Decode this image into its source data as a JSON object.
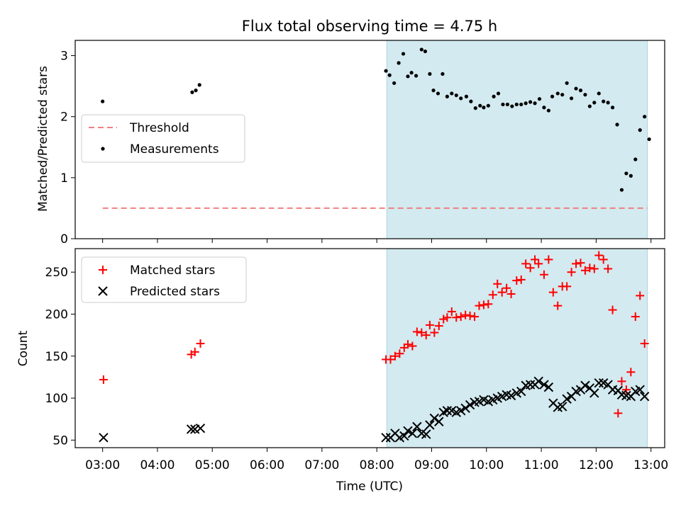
{
  "chart_data": [
    {
      "type": "scatter",
      "title": "Flux total observing time = 4.75 h",
      "xlabel": "",
      "ylabel": "Matched/Predicted stars",
      "xlim": [
        "02:30",
        "13:15"
      ],
      "ylim": [
        0,
        3.25
      ],
      "yticks": [
        0,
        1,
        2,
        3
      ],
      "grid": false,
      "legend_position": "center-left",
      "highlight_span": {
        "from": "08:11",
        "to": "12:56",
        "color": "#d3eaf0"
      },
      "series": [
        {
          "name": "Threshold",
          "kind": "dashed-line",
          "color": "#f08080",
          "x": [
            "03:00",
            "12:56"
          ],
          "y": [
            0.5,
            0.5
          ]
        },
        {
          "name": "Measurements",
          "kind": "dot",
          "color": "#000000",
          "points": [
            [
              "03:00",
              2.25
            ],
            [
              "04:38",
              2.4
            ],
            [
              "04:42",
              2.43
            ],
            [
              "04:46",
              2.52
            ],
            [
              "08:10",
              2.75
            ],
            [
              "08:14",
              2.68
            ],
            [
              "08:19",
              2.55
            ],
            [
              "08:24",
              2.88
            ],
            [
              "08:29",
              3.03
            ],
            [
              "08:34",
              2.66
            ],
            [
              "08:38",
              2.72
            ],
            [
              "08:43",
              2.67
            ],
            [
              "08:49",
              3.1
            ],
            [
              "08:53",
              3.07
            ],
            [
              "08:58",
              2.7
            ],
            [
              "09:02",
              2.43
            ],
            [
              "09:07",
              2.38
            ],
            [
              "09:12",
              2.7
            ],
            [
              "09:17",
              2.33
            ],
            [
              "09:22",
              2.38
            ],
            [
              "09:27",
              2.35
            ],
            [
              "09:32",
              2.3
            ],
            [
              "09:38",
              2.33
            ],
            [
              "09:43",
              2.25
            ],
            [
              "09:48",
              2.14
            ],
            [
              "09:53",
              2.18
            ],
            [
              "09:57",
              2.15
            ],
            [
              "10:02",
              2.18
            ],
            [
              "10:08",
              2.33
            ],
            [
              "10:13",
              2.38
            ],
            [
              "10:18",
              2.2
            ],
            [
              "10:23",
              2.2
            ],
            [
              "10:28",
              2.17
            ],
            [
              "10:33",
              2.2
            ],
            [
              "10:38",
              2.2
            ],
            [
              "10:43",
              2.22
            ],
            [
              "10:48",
              2.24
            ],
            [
              "10:53",
              2.22
            ],
            [
              "10:58",
              2.29
            ],
            [
              "11:03",
              2.15
            ],
            [
              "11:08",
              2.1
            ],
            [
              "11:12",
              2.33
            ],
            [
              "11:18",
              2.38
            ],
            [
              "11:23",
              2.36
            ],
            [
              "11:28",
              2.55
            ],
            [
              "11:33",
              2.3
            ],
            [
              "11:38",
              2.46
            ],
            [
              "11:43",
              2.43
            ],
            [
              "11:48",
              2.36
            ],
            [
              "11:53",
              2.17
            ],
            [
              "11:58",
              2.23
            ],
            [
              "12:03",
              2.38
            ],
            [
              "12:08",
              2.25
            ],
            [
              "12:13",
              2.23
            ],
            [
              "12:18",
              2.15
            ],
            [
              "12:23",
              1.87
            ],
            [
              "12:28",
              0.8
            ],
            [
              "12:33",
              1.07
            ],
            [
              "12:38",
              1.03
            ],
            [
              "12:43",
              1.3
            ],
            [
              "12:48",
              1.78
            ],
            [
              "12:53",
              2.0
            ],
            [
              "12:58",
              1.63
            ]
          ]
        }
      ]
    },
    {
      "type": "scatter",
      "title": "",
      "xlabel": "Time (UTC)",
      "ylabel": "Count",
      "xlim": [
        "02:30",
        "13:15"
      ],
      "ylim": [
        41,
        278
      ],
      "yticks": [
        50,
        100,
        150,
        200,
        250
      ],
      "xticks": [
        "03:00",
        "04:00",
        "05:00",
        "06:00",
        "07:00",
        "08:00",
        "09:00",
        "10:00",
        "11:00",
        "12:00",
        "13:00"
      ],
      "grid": false,
      "legend_position": "upper-left",
      "highlight_span": {
        "from": "08:11",
        "to": "12:56",
        "color": "#d3eaf0"
      },
      "series": [
        {
          "name": "Matched stars",
          "marker": "plus",
          "color": "#ff0000",
          "points": [
            [
              "03:01",
              122
            ],
            [
              "04:37",
              152
            ],
            [
              "04:41",
              155
            ],
            [
              "04:47",
              165
            ],
            [
              "08:10",
              146
            ],
            [
              "08:15",
              146
            ],
            [
              "08:20",
              150
            ],
            [
              "08:25",
              153
            ],
            [
              "08:30",
              160
            ],
            [
              "08:34",
              164
            ],
            [
              "08:39",
              162
            ],
            [
              "08:44",
              179
            ],
            [
              "08:49",
              178
            ],
            [
              "08:54",
              175
            ],
            [
              "08:58",
              187
            ],
            [
              "09:03",
              178
            ],
            [
              "09:08",
              186
            ],
            [
              "09:13",
              194
            ],
            [
              "09:17",
              196
            ],
            [
              "09:22",
              203
            ],
            [
              "09:27",
              196
            ],
            [
              "09:32",
              197
            ],
            [
              "09:37",
              199
            ],
            [
              "09:42",
              198
            ],
            [
              "09:47",
              197
            ],
            [
              "09:52",
              210
            ],
            [
              "09:57",
              211
            ],
            [
              "10:02",
              212
            ],
            [
              "10:07",
              223
            ],
            [
              "10:12",
              236
            ],
            [
              "10:17",
              226
            ],
            [
              "10:22",
              231
            ],
            [
              "10:27",
              224
            ],
            [
              "10:33",
              240
            ],
            [
              "10:38",
              241
            ],
            [
              "10:43",
              260
            ],
            [
              "10:48",
              255
            ],
            [
              "10:53",
              265
            ],
            [
              "10:57",
              260
            ],
            [
              "11:03",
              247
            ],
            [
              "11:08",
              265
            ],
            [
              "11:13",
              226
            ],
            [
              "11:18",
              210
            ],
            [
              "11:23",
              233
            ],
            [
              "11:28",
              233
            ],
            [
              "11:33",
              250
            ],
            [
              "11:38",
              260
            ],
            [
              "11:43",
              261
            ],
            [
              "11:48",
              252
            ],
            [
              "11:53",
              255
            ],
            [
              "11:58",
              254
            ],
            [
              "12:03",
              270
            ],
            [
              "12:08",
              265
            ],
            [
              "12:13",
              254
            ],
            [
              "12:18",
              205
            ],
            [
              "12:24",
              82
            ],
            [
              "12:28",
              120
            ],
            [
              "12:33",
              110
            ],
            [
              "12:38",
              131
            ],
            [
              "12:43",
              197
            ],
            [
              "12:48",
              222
            ],
            [
              "12:53",
              165
            ]
          ]
        },
        {
          "name": "Predicted stars",
          "marker": "x",
          "color": "#000000",
          "points": [
            [
              "03:01",
              53
            ],
            [
              "04:37",
              63
            ],
            [
              "04:41",
              63
            ],
            [
              "04:47",
              64
            ],
            [
              "08:10",
              53
            ],
            [
              "08:15",
              53
            ],
            [
              "08:20",
              58
            ],
            [
              "08:25",
              53
            ],
            [
              "08:30",
              55
            ],
            [
              "08:34",
              61
            ],
            [
              "08:39",
              58
            ],
            [
              "08:44",
              66
            ],
            [
              "08:49",
              58
            ],
            [
              "08:54",
              57
            ],
            [
              "08:58",
              68
            ],
            [
              "09:03",
              76
            ],
            [
              "09:08",
              72
            ],
            [
              "09:13",
              83
            ],
            [
              "09:17",
              85
            ],
            [
              "09:22",
              85
            ],
            [
              "09:27",
              83
            ],
            [
              "09:32",
              85
            ],
            [
              "09:37",
              88
            ],
            [
              "09:42",
              92
            ],
            [
              "09:47",
              95
            ],
            [
              "09:52",
              96
            ],
            [
              "09:57",
              98
            ],
            [
              "10:02",
              96
            ],
            [
              "10:07",
              98
            ],
            [
              "10:12",
              100
            ],
            [
              "10:17",
              102
            ],
            [
              "10:22",
              104
            ],
            [
              "10:27",
              103
            ],
            [
              "10:33",
              106
            ],
            [
              "10:38",
              108
            ],
            [
              "10:43",
              115
            ],
            [
              "10:48",
              116
            ],
            [
              "10:53",
              116
            ],
            [
              "10:57",
              120
            ],
            [
              "11:03",
              116
            ],
            [
              "11:08",
              113
            ],
            [
              "11:13",
              94
            ],
            [
              "11:18",
              89
            ],
            [
              "11:23",
              90
            ],
            [
              "11:28",
              99
            ],
            [
              "11:33",
              102
            ],
            [
              "11:38",
              108
            ],
            [
              "11:43",
              110
            ],
            [
              "11:48",
              115
            ],
            [
              "11:53",
              112
            ],
            [
              "11:58",
              106
            ],
            [
              "12:03",
              118
            ],
            [
              "12:08",
              118
            ],
            [
              "12:13",
              116
            ],
            [
              "12:18",
              110
            ],
            [
              "12:24",
              109
            ],
            [
              "12:28",
              104
            ],
            [
              "12:33",
              103
            ],
            [
              "12:38",
              102
            ],
            [
              "12:43",
              108
            ],
            [
              "12:48",
              110
            ],
            [
              "12:53",
              102
            ]
          ]
        }
      ]
    }
  ]
}
